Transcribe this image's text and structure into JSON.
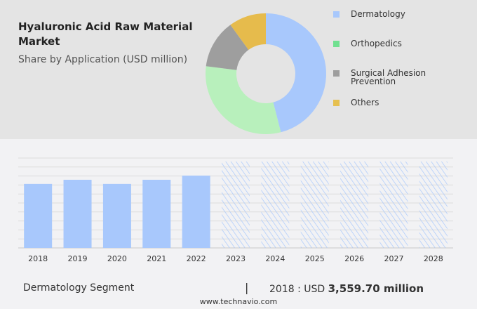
{
  "title": "Hyaluronic Acid Raw Material Market",
  "subtitle": "Share by Application (USD million)",
  "chart_data": [
    {
      "type": "pie",
      "subtype": "donut",
      "title": "Share by Application (USD million)",
      "categories": [
        "Dermatology",
        "Orthopedics",
        "Surgical Adhesion Prevention",
        "Others"
      ],
      "values_percent_estimated": [
        46,
        31,
        13,
        10
      ],
      "colors": [
        "#a8c8fc",
        "#b8f0bc",
        "#9e9e9e",
        "#e6bb4c"
      ],
      "legend_colors": [
        "#a8c8fc",
        "#70e090",
        "#9e9e9e",
        "#e6c050"
      ],
      "legend": "right"
    },
    {
      "type": "bar",
      "categories": [
        "2018",
        "2019",
        "2020",
        "2021",
        "2022",
        "2023",
        "2024",
        "2025",
        "2026",
        "2027",
        "2028"
      ],
      "values": [
        3559.7,
        3790,
        3560,
        3790,
        4020,
        null,
        null,
        null,
        null,
        null,
        null
      ],
      "forecast_years": [
        "2023",
        "2024",
        "2025",
        "2026",
        "2027",
        "2028"
      ],
      "ylim": [
        0,
        5000
      ],
      "grid": true,
      "color": "#a8c8fc"
    }
  ],
  "footer": {
    "segment": "Dermatology Segment",
    "separator": "|",
    "year_label": "2018 : USD",
    "value": "3,559.70 million",
    "site": "www.technavio.com"
  }
}
